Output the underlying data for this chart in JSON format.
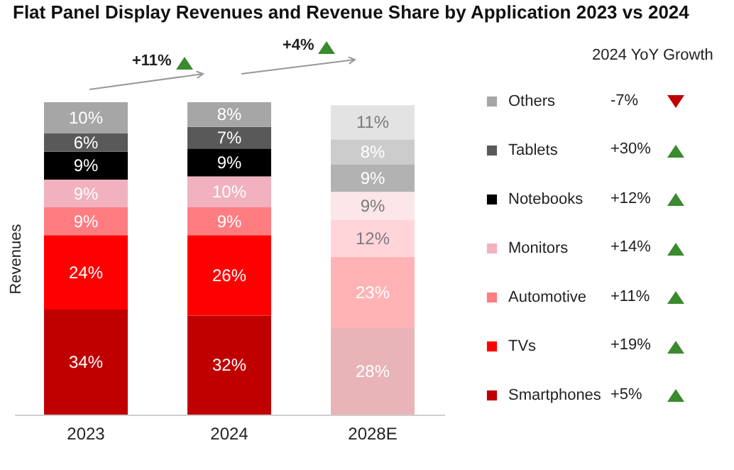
{
  "chart_data": {
    "type": "bar",
    "title": "Flat Panel Display Revenues and Revenue Share by Application 2023 vs 2024",
    "ylabel": "Revenues",
    "categories": [
      "2023",
      "2024",
      "2028E"
    ],
    "stacked": true,
    "legend": "right",
    "series": [
      {
        "name": "Smartphones",
        "color": "#c00000",
        "colors": [
          "#c00000",
          "#c00000",
          "#e8b4b8"
        ],
        "values": [
          34,
          32,
          28
        ],
        "value_labels": [
          "34%",
          "32%",
          "28%"
        ]
      },
      {
        "name": "TVs",
        "color": "#ff0000",
        "colors": [
          "#ff0000",
          "#ff0000",
          "#ffb3b5"
        ],
        "values": [
          24,
          26,
          23
        ],
        "value_labels": [
          "24%",
          "26%",
          "23%"
        ]
      },
      {
        "name": "Automotive",
        "color": "#ff7c80",
        "colors": [
          "#ff7c80",
          "#ff7c80",
          "#ffd5da"
        ],
        "values": [
          9,
          9,
          12
        ],
        "value_labels": [
          "9%",
          "9%",
          "12%"
        ]
      },
      {
        "name": "Monitors",
        "color": "#f2b1be",
        "colors": [
          "#f2b1be",
          "#f2b1be",
          "#fce6ea"
        ],
        "values": [
          9,
          10,
          9
        ],
        "value_labels": [
          "9%",
          "10%",
          "9%"
        ]
      },
      {
        "name": "Notebooks",
        "color": "#000000",
        "colors": [
          "#000000",
          "#000000",
          "#b2b2b2"
        ],
        "values": [
          9,
          9,
          9
        ],
        "value_labels": [
          "9%",
          "9%",
          "9%"
        ]
      },
      {
        "name": "Tablets",
        "color": "#595959",
        "colors": [
          "#595959",
          "#595959",
          "#cccccc"
        ],
        "values": [
          6,
          7,
          8
        ],
        "value_labels": [
          "6%",
          "7%",
          "8%"
        ]
      },
      {
        "name": "Others",
        "color": "#a6a6a6",
        "colors": [
          "#a6a6a6",
          "#a6a6a6",
          "#e3e3e3"
        ],
        "values": [
          10,
          8,
          11
        ],
        "value_labels": [
          "10%",
          "8%",
          "11%"
        ]
      }
    ],
    "annotations": [
      "+11%",
      "+4%",
      "2024 YoY Growth",
      "-7%",
      "+30%",
      "+12%",
      "+14%",
      "+11%",
      "+19%",
      "+5%"
    ]
  }
}
